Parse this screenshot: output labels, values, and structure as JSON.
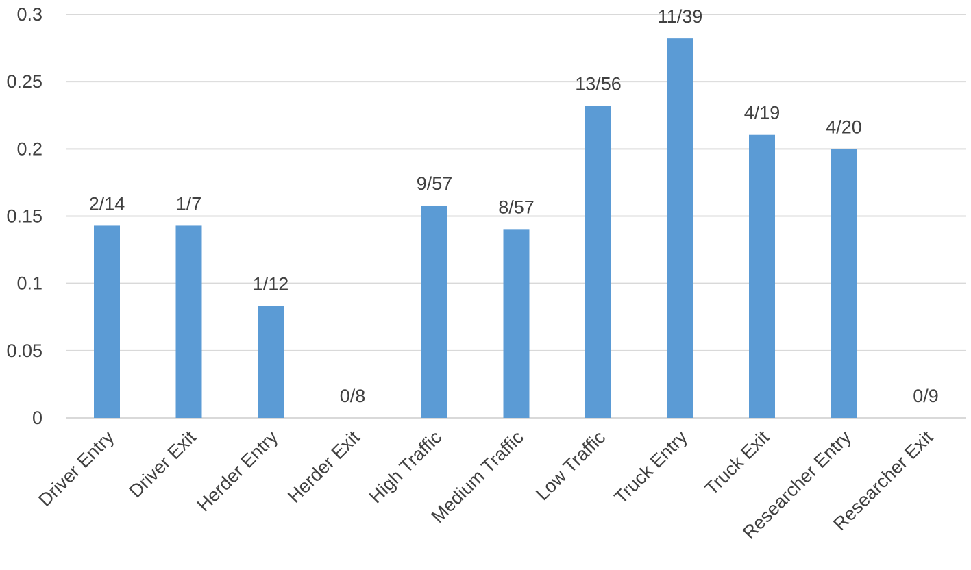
{
  "chart_data": {
    "type": "bar",
    "categories": [
      "Driver Entry",
      "Driver Exit",
      "Herder Entry",
      "Herder Exit",
      "High Traffic",
      "Medium Traffic",
      "Low Traffic",
      "Truck Entry",
      "Truck Exit",
      "Researcher Entry",
      "Researcher Exit"
    ],
    "values": [
      0.1429,
      0.1429,
      0.0833,
      0,
      0.1579,
      0.1404,
      0.2321,
      0.2821,
      0.2105,
      0.2,
      0
    ],
    "data_labels": [
      "2/14",
      "1/7",
      "1/12",
      "0/8",
      "9/57",
      "8/57",
      "13/56",
      "11/39",
      "4/19",
      "4/20",
      "0/9"
    ],
    "title": "",
    "xlabel": "",
    "ylabel": "",
    "ylim": [
      0,
      0.3
    ],
    "y_ticks": [
      0,
      0.05,
      0.1,
      0.15,
      0.2,
      0.25,
      0.3
    ],
    "y_tick_labels": [
      "0",
      "0.05",
      "0.1",
      "0.15",
      "0.2",
      "0.25",
      "0.3"
    ],
    "grid": true,
    "legend": "none",
    "colors": {
      "bar": "#5B9BD5",
      "grid": "#D9D9D9",
      "text": "#404040"
    }
  }
}
